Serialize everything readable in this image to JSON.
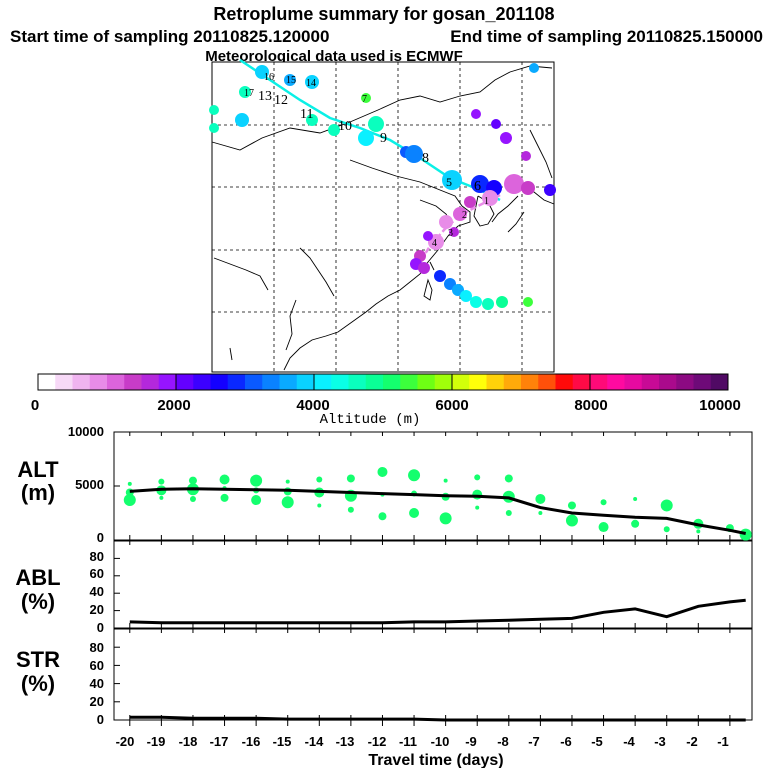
{
  "header": {
    "title": "Retroplume summary for gosan_201108",
    "start_label": "Start time of sampling 20110825.120000",
    "end_label": "End time of sampling 20110825.150000",
    "met_label": "Meteorological data used is ECMWF"
  },
  "colorbar": {
    "ticks": [
      "0",
      "2000",
      "4000",
      "6000",
      "8000",
      "10000"
    ],
    "label": "Altitude (m)",
    "colors": [
      "#ffffff",
      "#f7d9f7",
      "#f0b4f0",
      "#e88ce8",
      "#dc64dc",
      "#c83cc8",
      "#b428dc",
      "#9614ff",
      "#6400ff",
      "#3c00ff",
      "#1400ff",
      "#0a28ff",
      "#0a5aff",
      "#0a82ff",
      "#0aaaff",
      "#0ad2ff",
      "#0af0ff",
      "#0affe6",
      "#0affbe",
      "#0aff96",
      "#14ff6e",
      "#3cff3c",
      "#6eff14",
      "#a0ff0a",
      "#d2ff0a",
      "#ffff0a",
      "#ffd20a",
      "#ffaa0a",
      "#ff820a",
      "#ff500a",
      "#ff0a0a",
      "#ff0a46",
      "#ff0a78",
      "#ff0aa0",
      "#e60aa0",
      "#c80a96",
      "#aa0a8c",
      "#8c0a82",
      "#6e0a78",
      "#500a64"
    ]
  },
  "map": {
    "trajectory_labels": [
      "17",
      "16",
      "15",
      "14",
      "13",
      "12",
      "11",
      "10",
      "9",
      "8",
      "7",
      "6",
      "5",
      "4",
      "3",
      "2",
      "1"
    ]
  },
  "chart_data": [
    {
      "type": "line",
      "panel": "ALT",
      "title": "ALT",
      "ylabel": "(m)",
      "ylim": [
        0,
        10000
      ],
      "yticks": [
        "10000",
        "5000",
        "0"
      ],
      "x": [
        -20,
        -19,
        -18,
        -17,
        -16,
        -15,
        -14,
        -13,
        -12,
        -11,
        -10,
        -9,
        -8,
        -7,
        -6,
        -5,
        -4,
        -3,
        -2,
        -1,
        -0.5
      ],
      "series": [
        {
          "name": "mean",
          "values": [
            4500,
            4700,
            4750,
            4700,
            4650,
            4600,
            4500,
            4400,
            4300,
            4200,
            4100,
            4050,
            3900,
            3000,
            2500,
            2300,
            2100,
            2000,
            1400,
            900,
            600
          ]
        }
      ],
      "scatter": {
        "x": [
          -20,
          -20,
          -20,
          -19,
          -19,
          -19,
          -18,
          -18,
          -18,
          -17,
          -17,
          -17,
          -16,
          -16,
          -16,
          -15,
          -15,
          -15,
          -14,
          -14,
          -14,
          -13,
          -13,
          -13,
          -12,
          -12,
          -12,
          -11,
          -11,
          -11,
          -10,
          -10,
          -10,
          -9,
          -9,
          -9,
          -8,
          -8,
          -8,
          -7,
          -7,
          -6,
          -6,
          -5,
          -5,
          -4,
          -4,
          -3,
          -3,
          -2,
          -2,
          -1,
          -0.5
        ],
        "y": [
          5200,
          4400,
          3700,
          5400,
          4600,
          3900,
          5500,
          4700,
          3800,
          5600,
          4800,
          3900,
          5500,
          4600,
          3700,
          5400,
          4500,
          3500,
          5600,
          4400,
          3200,
          5700,
          4100,
          2800,
          6300,
          4200,
          2200,
          6000,
          4300,
          2500,
          5500,
          4000,
          2000,
          5800,
          4200,
          3000,
          5700,
          4000,
          2500,
          3800,
          2500,
          3200,
          1800,
          3500,
          1200,
          3800,
          1500,
          3200,
          1000,
          1500,
          800,
          1100,
          500
        ]
      }
    },
    {
      "type": "line",
      "panel": "ABL",
      "title": "ABL",
      "ylabel": "(%)",
      "ylim": [
        0,
        100
      ],
      "yticks": [
        "80",
        "60",
        "40",
        "20",
        "0"
      ],
      "x": [
        -20,
        -19,
        -18,
        -17,
        -16,
        -15,
        -14,
        -13,
        -12,
        -11,
        -10,
        -9,
        -8,
        -7,
        -6,
        -5,
        -4,
        -3,
        -2,
        -1,
        -0.5
      ],
      "series": [
        {
          "name": "ABL",
          "values": [
            7,
            6,
            6,
            6,
            6,
            6,
            6,
            6,
            6,
            7,
            7,
            8,
            9,
            10,
            11,
            18,
            22,
            13,
            25,
            30,
            32
          ]
        }
      ]
    },
    {
      "type": "line",
      "panel": "STR",
      "title": "STR",
      "ylabel": "(%)",
      "ylim": [
        0,
        100
      ],
      "yticks": [
        "80",
        "60",
        "40",
        "20",
        "0"
      ],
      "x": [
        -20,
        -19,
        -18,
        -17,
        -16,
        -15,
        -14,
        -13,
        -12,
        -11,
        -10,
        -9,
        -8,
        -7,
        -6,
        -5,
        -4,
        -3,
        -2,
        -1,
        -0.5
      ],
      "series": [
        {
          "name": "STR",
          "values": [
            3,
            3,
            2,
            2,
            2,
            1,
            1,
            1,
            1,
            1,
            0,
            0,
            0,
            0,
            0,
            0,
            0,
            0,
            0,
            0,
            0
          ]
        }
      ]
    }
  ],
  "xaxis": {
    "ticks": [
      "-20",
      "-19",
      "-18",
      "-17",
      "-16",
      "-15",
      "-14",
      "-13",
      "-12",
      "-11",
      "-10",
      "-9",
      "-8",
      "-7",
      "-6",
      "-5",
      "-4",
      "-3",
      "-2",
      "-1"
    ],
    "label": "Travel time (days)"
  }
}
